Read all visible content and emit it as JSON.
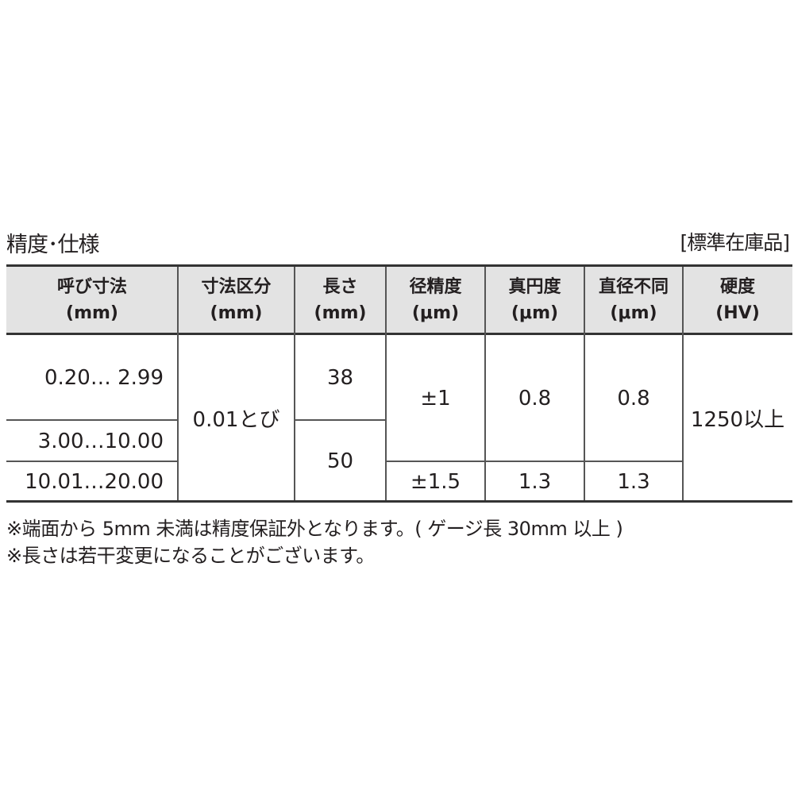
{
  "title": "精度･仕様",
  "tag": "[標準在庫品]",
  "table": {
    "headers": [
      {
        "line1": "呼び寸法",
        "line2": "(mm)"
      },
      {
        "line1": "寸法区分",
        "line2": "(mm)"
      },
      {
        "line1": "長さ",
        "line2": "(mm)"
      },
      {
        "line1": "径精度",
        "line2": "(μm)"
      },
      {
        "line1": "真円度",
        "line2": "(μm)"
      },
      {
        "line1": "直径不同",
        "line2": "(μm)"
      },
      {
        "line1": "硬度",
        "line2": "(HV)"
      }
    ],
    "nominal": [
      "0.20…  2.99",
      "3.00…10.00",
      "10.01…20.00"
    ],
    "division": "0.01とび",
    "length": [
      "38",
      "50"
    ],
    "diameter_accuracy": [
      "±1",
      "±1.5"
    ],
    "roundness": [
      "0.8",
      "1.3"
    ],
    "diameter_variation": [
      "0.8",
      "1.3"
    ],
    "hardness": "1250以上"
  },
  "notes": [
    "※端面から 5mm 未満は精度保証外となります。( ゲージ長 30mm 以上 )",
    "※長さは若干変更になることがございます。"
  ]
}
